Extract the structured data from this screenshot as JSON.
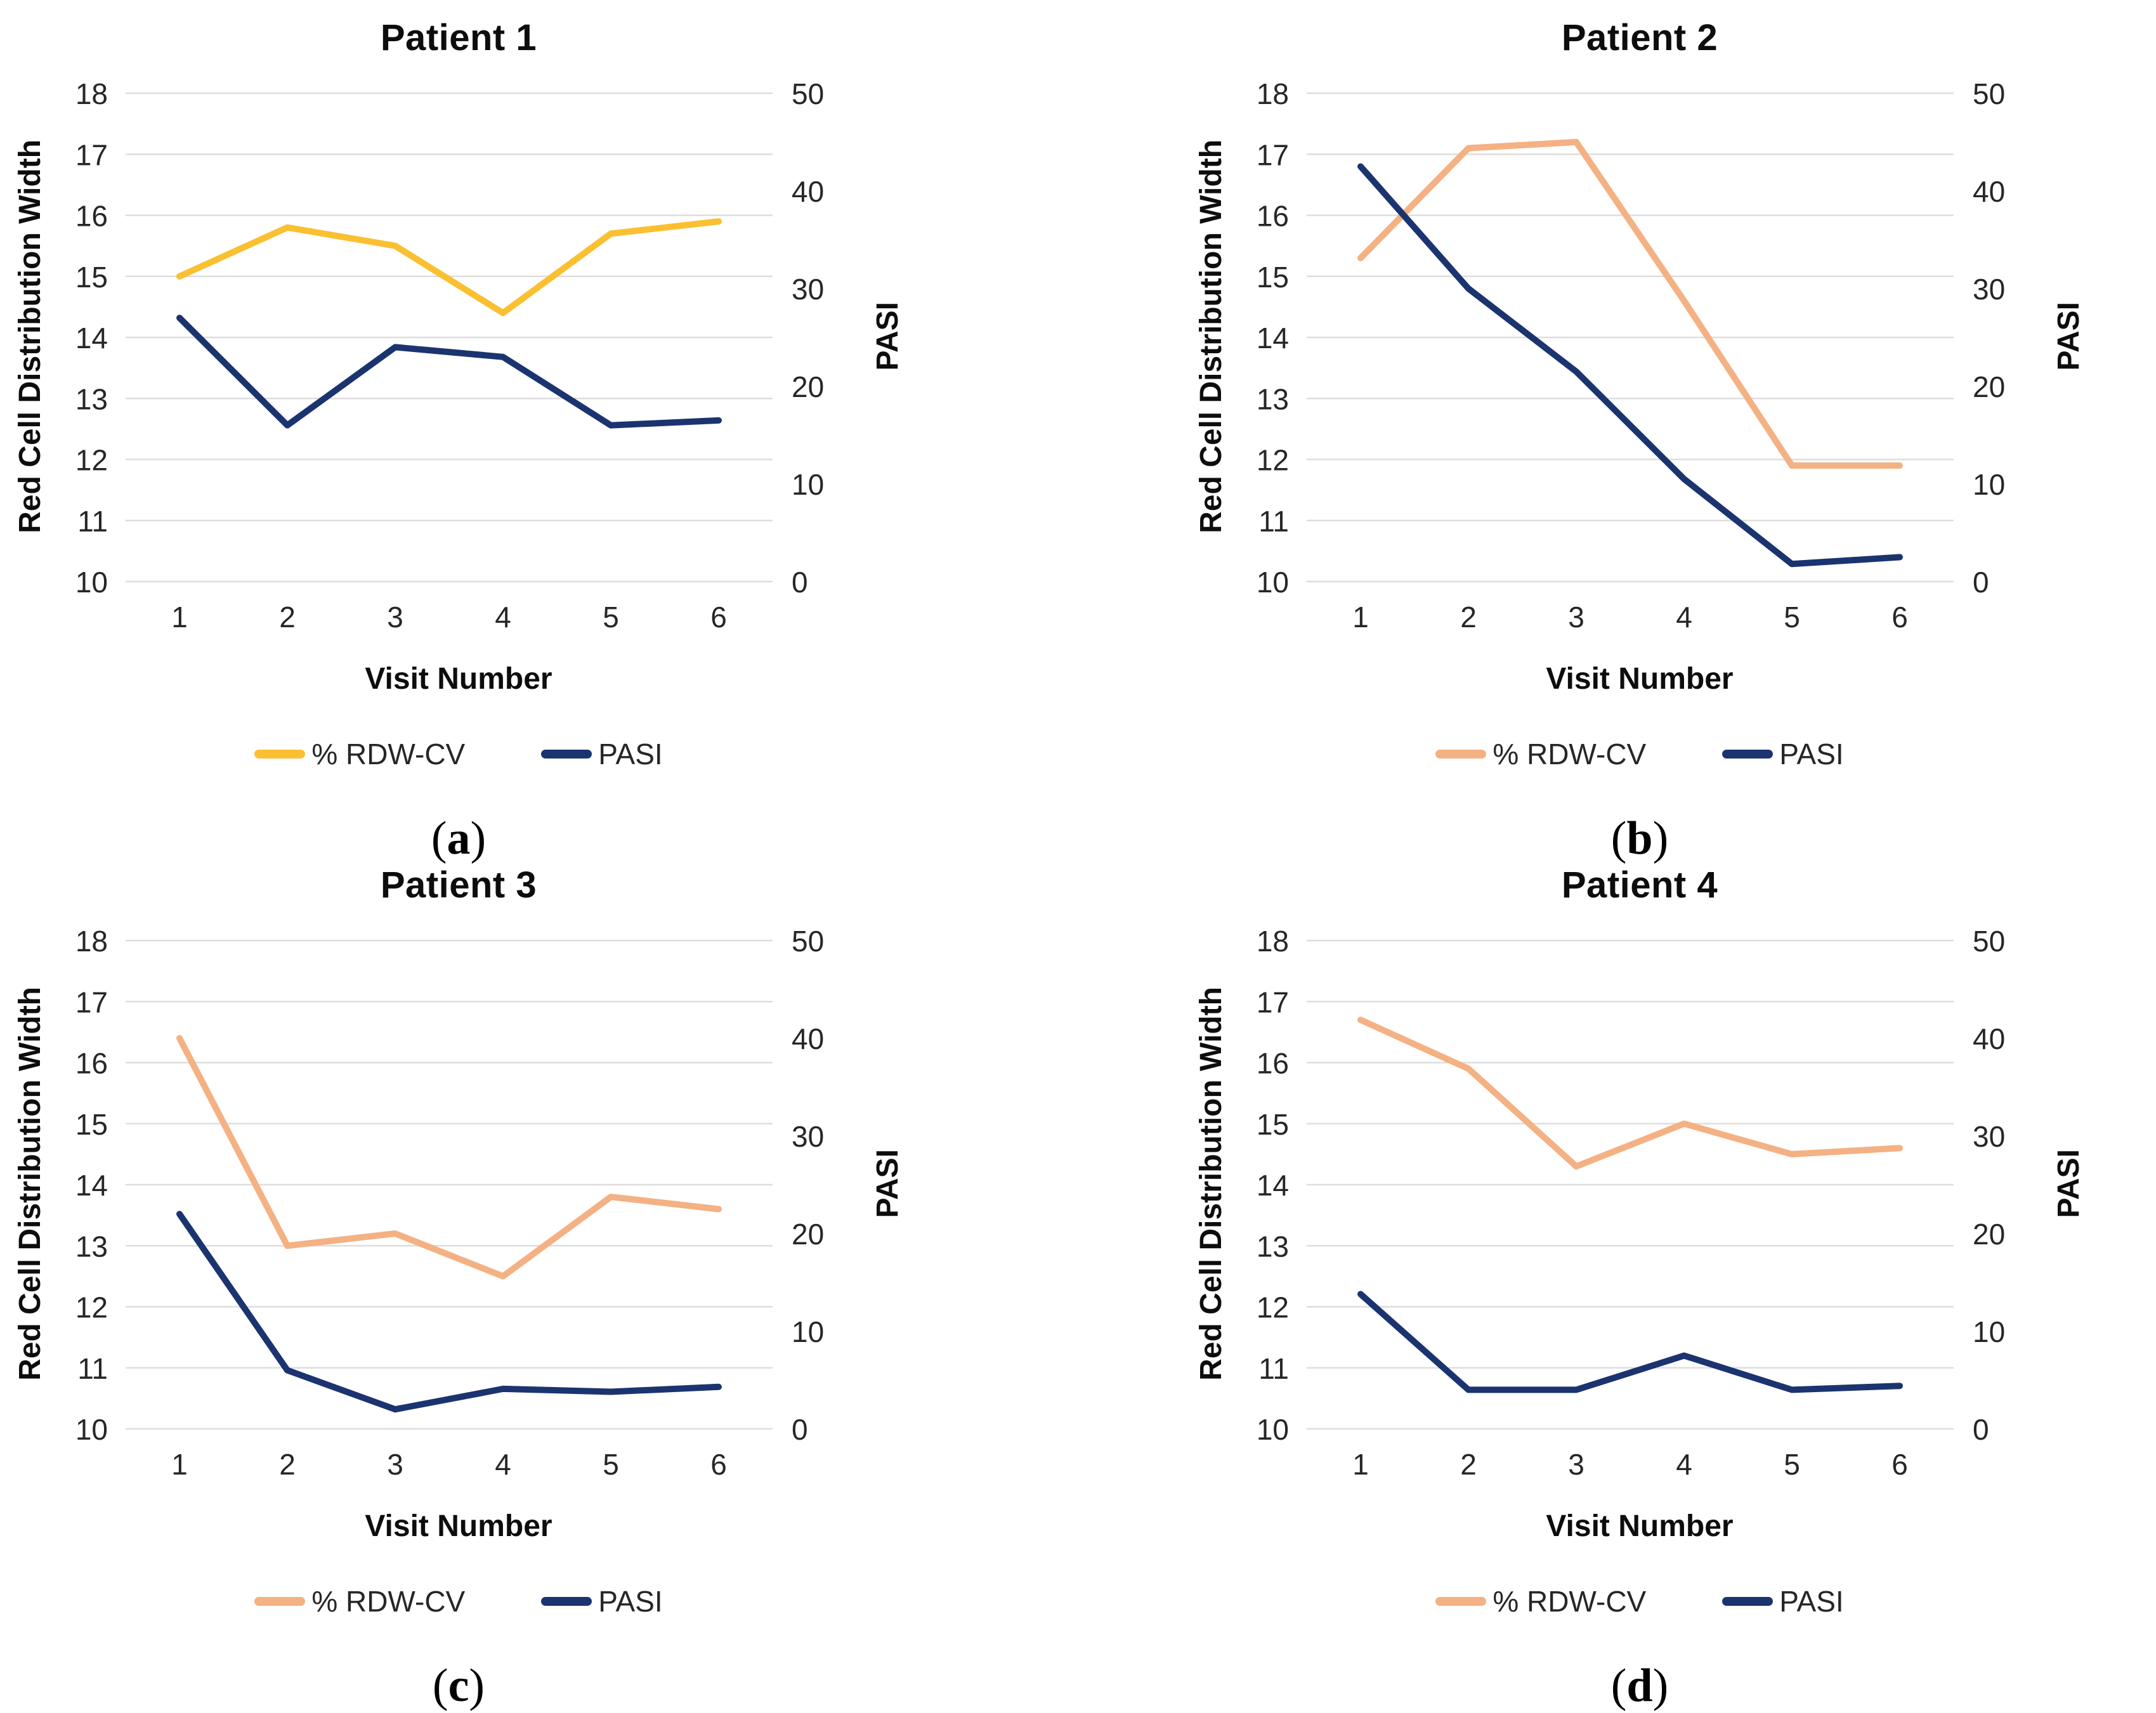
{
  "chart_data": [
    {
      "type": "line",
      "title": "Patient 1",
      "caption_open": "(",
      "caption_letter": "a",
      "caption_close": ")",
      "xlabel": "Visit Number",
      "ylabel_left": "Red Cell Distribution Width",
      "ylabel_right": "PASI",
      "x": [
        1,
        2,
        3,
        4,
        5,
        6
      ],
      "ylim_left": [
        10,
        18
      ],
      "yticks_left": [
        10,
        11,
        12,
        13,
        14,
        15,
        16,
        17,
        18
      ],
      "ylim_right": [
        0,
        50
      ],
      "yticks_right": [
        0,
        10,
        20,
        30,
        40,
        50
      ],
      "grid": "horizontal-only",
      "legend_position": "bottom",
      "series": [
        {
          "name": "% RDW-CV",
          "axis": "left",
          "color": "#FAC032",
          "values": [
            15.0,
            15.8,
            15.5,
            14.4,
            15.7,
            15.9
          ]
        },
        {
          "name": "PASI",
          "axis": "right",
          "color": "#1B3470",
          "values": [
            27,
            16,
            24,
            23,
            16,
            16.5
          ]
        }
      ]
    },
    {
      "type": "line",
      "title": "Patient 2",
      "caption_open": "(",
      "caption_letter": "b",
      "caption_close": ")",
      "xlabel": "Visit Number",
      "ylabel_left": "Red Cell Distribution Width",
      "ylabel_right": "PASI",
      "x": [
        1,
        2,
        3,
        4,
        5,
        6
      ],
      "ylim_left": [
        10,
        18
      ],
      "yticks_left": [
        10,
        11,
        12,
        13,
        14,
        15,
        16,
        17,
        18
      ],
      "ylim_right": [
        0,
        50
      ],
      "yticks_right": [
        0,
        10,
        20,
        30,
        40,
        50
      ],
      "grid": "horizontal-only",
      "legend_position": "bottom",
      "series": [
        {
          "name": "% RDW-CV",
          "axis": "left",
          "color": "#F4B183",
          "values": [
            15.3,
            17.1,
            17.2,
            14.6,
            11.9,
            11.9
          ]
        },
        {
          "name": "PASI",
          "axis": "right",
          "color": "#1B3470",
          "values": [
            42.5,
            30,
            21.5,
            10.5,
            1.8,
            2.5
          ]
        }
      ]
    },
    {
      "type": "line",
      "title": "Patient 3",
      "caption_open": "(",
      "caption_letter": "c",
      "caption_close": ")",
      "xlabel": "Visit Number",
      "ylabel_left": "Red Cell Distribution Width",
      "ylabel_right": "PASI",
      "x": [
        1,
        2,
        3,
        4,
        5,
        6
      ],
      "ylim_left": [
        10,
        18
      ],
      "yticks_left": [
        10,
        11,
        12,
        13,
        14,
        15,
        16,
        17,
        18
      ],
      "ylim_right": [
        0,
        50
      ],
      "yticks_right": [
        0,
        10,
        20,
        30,
        40,
        50
      ],
      "grid": "horizontal-only",
      "legend_position": "bottom",
      "series": [
        {
          "name": "% RDW-CV",
          "axis": "left",
          "color": "#F4B183",
          "values": [
            16.4,
            13.0,
            13.2,
            12.5,
            13.8,
            13.6
          ]
        },
        {
          "name": "PASI",
          "axis": "right",
          "color": "#1B3470",
          "values": [
            22,
            6,
            2,
            4.1,
            3.8,
            4.3
          ]
        }
      ]
    },
    {
      "type": "line",
      "title": "Patient 4",
      "caption_open": "(",
      "caption_letter": "d",
      "caption_close": ")",
      "xlabel": "Visit Number",
      "ylabel_left": "Red Cell Distribution Width",
      "ylabel_right": "PASI",
      "x": [
        1,
        2,
        3,
        4,
        5,
        6
      ],
      "ylim_left": [
        10,
        18
      ],
      "yticks_left": [
        10,
        11,
        12,
        13,
        14,
        15,
        16,
        17,
        18
      ],
      "ylim_right": [
        0,
        50
      ],
      "yticks_right": [
        0,
        10,
        20,
        30,
        40,
        50
      ],
      "grid": "horizontal-only",
      "legend_position": "bottom",
      "series": [
        {
          "name": "% RDW-CV",
          "axis": "left",
          "color": "#F4B183",
          "values": [
            16.7,
            15.9,
            14.3,
            15.0,
            14.5,
            14.6
          ]
        },
        {
          "name": "PASI",
          "axis": "right",
          "color": "#1B3470",
          "values": [
            13.8,
            4,
            4,
            7.5,
            4,
            4.4
          ]
        }
      ]
    }
  ],
  "style": {
    "gridline_color": "#DEDEDE",
    "tick_text_color": "#262626",
    "line_width": 10
  }
}
